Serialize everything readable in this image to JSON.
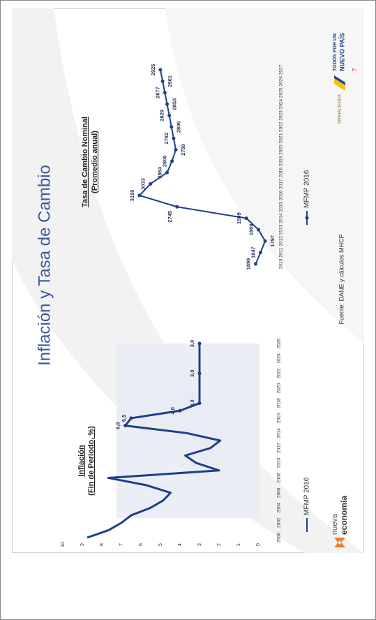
{
  "title": "Inflación y Tasa de Cambio",
  "chart_data": [
    {
      "type": "line",
      "title": "Inflación",
      "subtitle": "(Fin de Periodo, %)",
      "x": [
        2000,
        2001,
        2002,
        2003,
        2004,
        2005,
        2006,
        2007,
        2008,
        2009,
        2010,
        2011,
        2012,
        2013,
        2014,
        2015,
        2016,
        2017,
        2018,
        2019,
        2020,
        2021,
        2022,
        2023,
        2024,
        2025,
        2026
      ],
      "xlim": [
        2000,
        2026
      ],
      "xticks": [
        2000,
        2002,
        2004,
        2006,
        2008,
        2010,
        2012,
        2014,
        2016,
        2018,
        2020,
        2022,
        2024,
        2026
      ],
      "ylim": [
        0,
        10
      ],
      "yticks": [
        0,
        1,
        2,
        3,
        4,
        5,
        6,
        7,
        8,
        9,
        10
      ],
      "series": [
        {
          "name": "MFMP 2016",
          "color": "#1f3f8a",
          "values": [
            8.75,
            7.65,
            6.99,
            6.49,
            5.5,
            4.85,
            4.48,
            5.69,
            7.67,
            2.0,
            3.17,
            3.73,
            2.44,
            1.94,
            3.66,
            6.8,
            6.5,
            4.0,
            3.0,
            3.0,
            3.0,
            3.0,
            3.0,
            3.0,
            3.0,
            3.0,
            3.0
          ],
          "value_labels": [
            null,
            null,
            null,
            null,
            null,
            null,
            null,
            null,
            null,
            null,
            null,
            null,
            null,
            null,
            null,
            "6,8",
            "6,5",
            "4,0",
            "3,0",
            null,
            null,
            null,
            "3,0",
            null,
            null,
            null,
            "3,0"
          ]
        }
      ]
    },
    {
      "type": "line",
      "title": "Tasa de Cambio Nominal",
      "subtitle": "(Promedio anual)",
      "x": [
        2010,
        2011,
        2012,
        2013,
        2014,
        2015,
        2016,
        2017,
        2018,
        2019,
        2020,
        2021,
        2022,
        2023,
        2024,
        2025,
        2026,
        2027
      ],
      "xlim": [
        2010,
        2027
      ],
      "xticks": [
        2010,
        2011,
        2012,
        2013,
        2014,
        2015,
        2016,
        2017,
        2018,
        2019,
        2020,
        2021,
        2022,
        2023,
        2024,
        2025,
        2026,
        2027
      ],
      "ylim": [
        1700,
        3300
      ],
      "series": [
        {
          "name": "MFMP 2016",
          "color": "#1f3f8a",
          "values": [
            1899,
            1847,
            1797,
            1869,
            1999,
            2745,
            3150,
            3033,
            2853,
            2800,
            2759,
            2782,
            2806,
            2829,
            2853,
            2877,
            2901,
            2925
          ]
        }
      ]
    }
  ],
  "source": "Fuente: DANE y cálculos MHCP",
  "page_number": "7",
  "logos": {
    "nueva": "nueva",
    "economia": "economía",
    "ministry": "MINHACIENDA",
    "slogan_top": "TODOS POR UN",
    "slogan_bottom": "NUEVO PAÍS"
  }
}
